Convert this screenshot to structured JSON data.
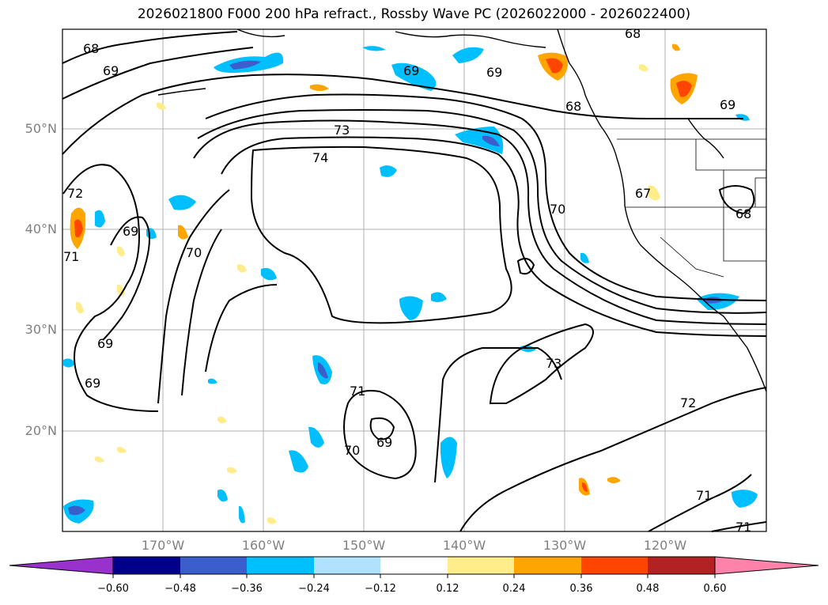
{
  "title": "2026021800 F000 200 hPa refract., Rossby Wave PC (2026022000 - 2026022400)",
  "lat_labels": [
    "50°N",
    "40°N",
    "30°N",
    "20°N"
  ],
  "lon_labels": [
    "170°W",
    "160°W",
    "150°W",
    "140°W",
    "130°W",
    "120°W"
  ],
  "contour_labels": [
    "68",
    "69",
    "69",
    "69",
    "68",
    "68",
    "69",
    "73",
    "74",
    "72",
    "70",
    "69",
    "71",
    "70",
    "69",
    "69",
    "71",
    "69",
    "70",
    "73",
    "72",
    "71",
    "71",
    "67",
    "68"
  ],
  "colorbar": {
    "ticks": [
      "−0.60",
      "−0.48",
      "−0.36",
      "−0.24",
      "−0.12",
      "0.12",
      "0.24",
      "0.36",
      "0.48",
      "0.60"
    ],
    "colors": [
      "#9932cc",
      "#00008b",
      "#3a5fcd",
      "#00bfff",
      "#b0e2ff",
      "#ffffff",
      "#ffec8b",
      "#ffa500",
      "#ff4500",
      "#b22222",
      "#ff82ab"
    ]
  }
}
